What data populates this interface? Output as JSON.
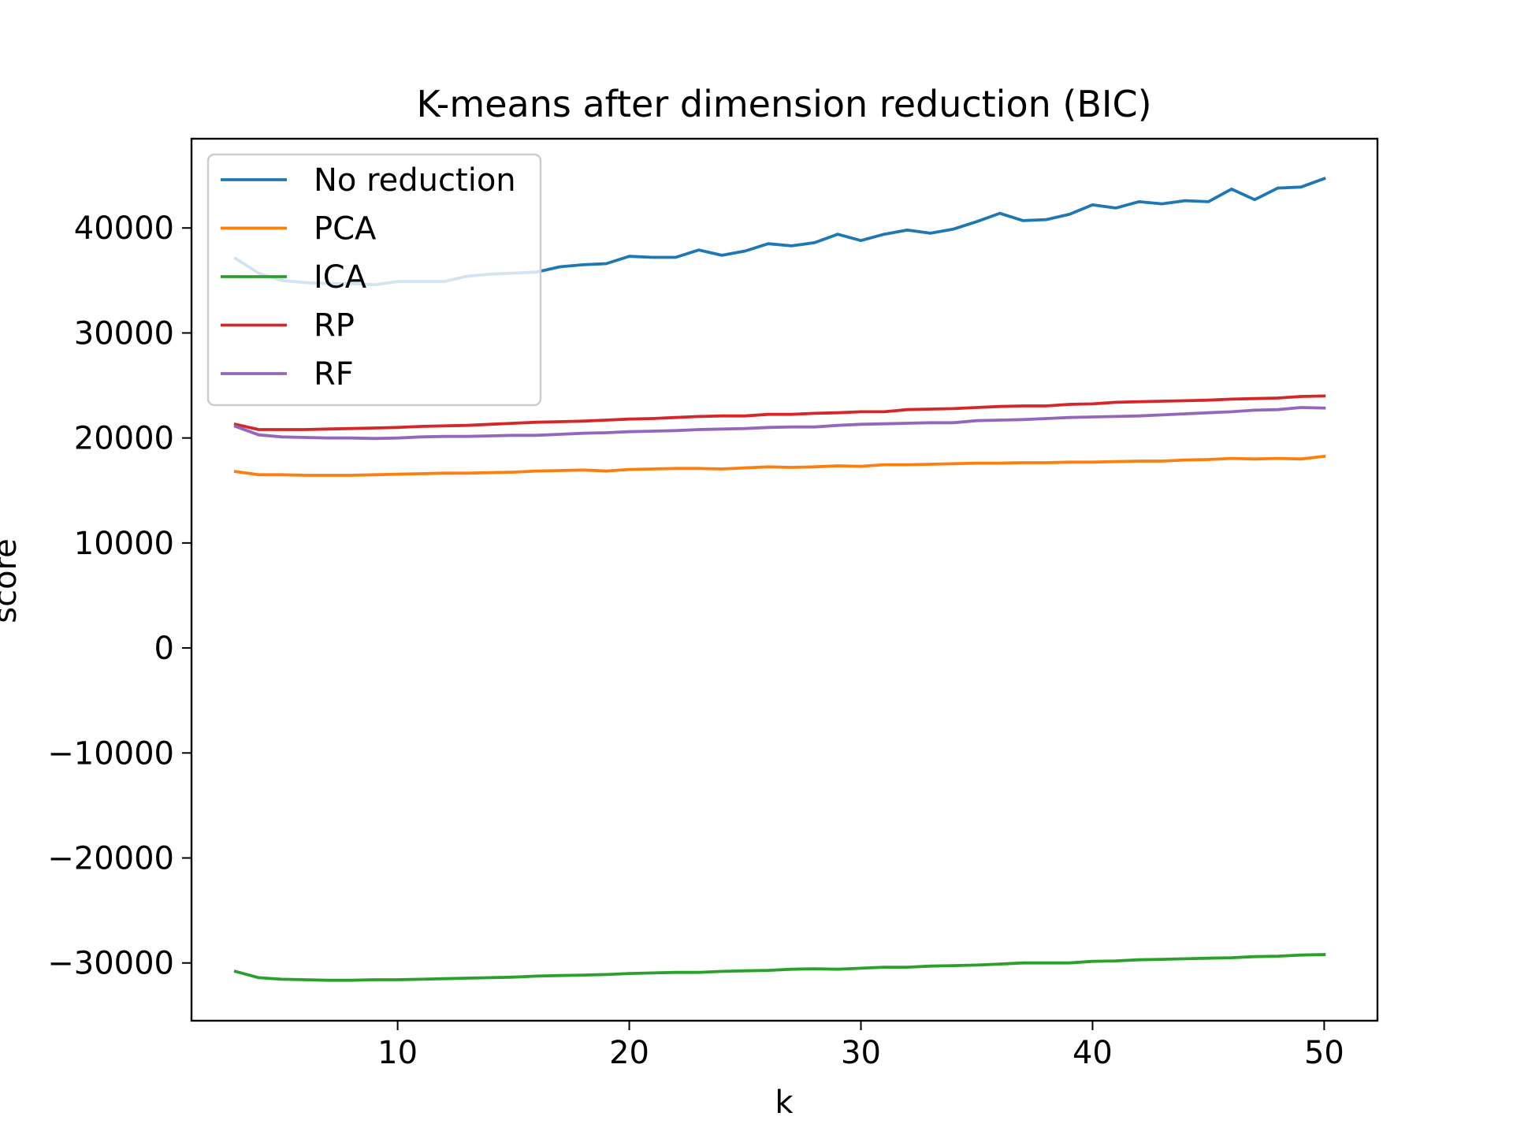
{
  "chart_data": {
    "type": "line",
    "title": "K-means after dimension reduction (BIC)",
    "xlabel": "k",
    "ylabel": "score",
    "xlim": [
      1.1,
      52.3
    ],
    "ylim": [
      -35500,
      48500
    ],
    "xticks": [
      10,
      20,
      30,
      40,
      50
    ],
    "xtick_labels": [
      "10",
      "20",
      "30",
      "40",
      "50"
    ],
    "yticks": [
      40000,
      30000,
      20000,
      10000,
      0,
      -10000,
      -20000,
      -30000
    ],
    "ytick_labels": [
      "40000",
      "30000",
      "20000",
      "10000",
      "0",
      "−10000",
      "−20000",
      "−30000"
    ],
    "grid": false,
    "legend_position": "upper-left",
    "x": [
      3,
      4,
      5,
      6,
      7,
      8,
      9,
      10,
      11,
      12,
      13,
      14,
      15,
      16,
      17,
      18,
      19,
      20,
      21,
      22,
      23,
      24,
      25,
      26,
      27,
      28,
      29,
      30,
      31,
      32,
      33,
      34,
      35,
      36,
      37,
      38,
      39,
      40,
      41,
      42,
      43,
      44,
      45,
      46,
      47,
      48,
      49,
      50
    ],
    "series": [
      {
        "name": "No reduction",
        "color": "#1f77b4",
        "values": [
          37100,
          35700,
          35000,
          34800,
          34700,
          34700,
          34600,
          34900,
          34900,
          34900,
          35400,
          35600,
          35700,
          35800,
          36300,
          36500,
          36600,
          37300,
          37200,
          37200,
          37900,
          37400,
          37800,
          38500,
          38300,
          38600,
          39400,
          38800,
          39400,
          39800,
          39500,
          39900,
          40600,
          41400,
          40700,
          40800,
          41300,
          42200,
          41900,
          42500,
          42300,
          42600,
          42500,
          43700,
          42700,
          43800,
          43900,
          44700
        ]
      },
      {
        "name": "PCA",
        "color": "#ff7f0e",
        "values": [
          16800,
          16500,
          16500,
          16450,
          16450,
          16450,
          16500,
          16550,
          16600,
          16650,
          16650,
          16700,
          16750,
          16850,
          16900,
          16950,
          16850,
          17000,
          17050,
          17100,
          17100,
          17050,
          17150,
          17250,
          17200,
          17250,
          17350,
          17300,
          17450,
          17450,
          17500,
          17550,
          17600,
          17600,
          17650,
          17650,
          17700,
          17700,
          17750,
          17800,
          17800,
          17900,
          17950,
          18050,
          18000,
          18050,
          18000,
          18250
        ]
      },
      {
        "name": "ICA",
        "color": "#2ca02c",
        "values": [
          -30800,
          -31400,
          -31550,
          -31600,
          -31650,
          -31650,
          -31600,
          -31600,
          -31550,
          -31500,
          -31450,
          -31400,
          -31350,
          -31250,
          -31200,
          -31150,
          -31100,
          -31000,
          -30950,
          -30900,
          -30900,
          -30800,
          -30750,
          -30700,
          -30600,
          -30550,
          -30600,
          -30500,
          -30400,
          -30400,
          -30300,
          -30250,
          -30200,
          -30100,
          -30000,
          -30000,
          -30000,
          -29850,
          -29800,
          -29700,
          -29650,
          -29600,
          -29550,
          -29500,
          -29400,
          -29350,
          -29250,
          -29200
        ]
      },
      {
        "name": "RP",
        "color": "#d62728",
        "values": [
          21300,
          20800,
          20800,
          20800,
          20850,
          20900,
          20950,
          21000,
          21100,
          21150,
          21200,
          21300,
          21400,
          21500,
          21550,
          21600,
          21700,
          21800,
          21850,
          21950,
          22050,
          22100,
          22100,
          22250,
          22250,
          22350,
          22400,
          22500,
          22500,
          22700,
          22750,
          22800,
          22900,
          23000,
          23050,
          23050,
          23200,
          23250,
          23400,
          23450,
          23500,
          23550,
          23600,
          23700,
          23750,
          23800,
          23950,
          24000
        ]
      },
      {
        "name": "RF",
        "color": "#9467bd",
        "values": [
          21100,
          20300,
          20100,
          20050,
          20000,
          20000,
          19950,
          20000,
          20100,
          20150,
          20150,
          20200,
          20250,
          20250,
          20350,
          20450,
          20500,
          20600,
          20650,
          20700,
          20800,
          20850,
          20900,
          21000,
          21050,
          21050,
          21200,
          21300,
          21350,
          21400,
          21450,
          21450,
          21650,
          21700,
          21750,
          21850,
          21950,
          22000,
          22050,
          22100,
          22200,
          22300,
          22400,
          22500,
          22650,
          22700,
          22900,
          22850
        ]
      }
    ]
  }
}
